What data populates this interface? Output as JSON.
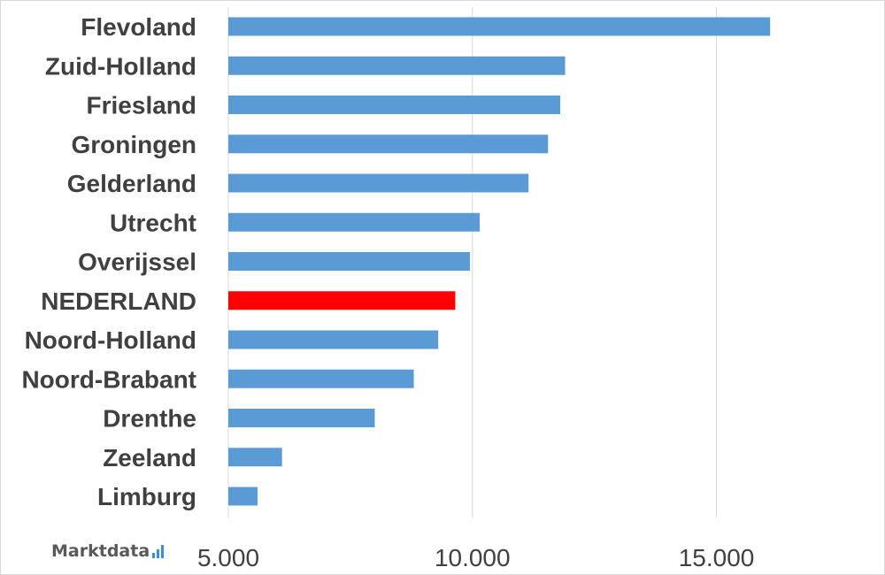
{
  "chart_data": {
    "type": "bar",
    "orientation": "horizontal",
    "categories": [
      "Flevoland",
      "Zuid-Holland",
      "Friesland",
      "Groningen",
      "Gelderland",
      "Utrecht",
      "Overijssel",
      "NEDERLAND",
      "Noord-Holland",
      "Noord-Brabant",
      "Drenthe",
      "Zeeland",
      "Limburg"
    ],
    "values": [
      16100,
      11900,
      11800,
      11550,
      11150,
      10150,
      9950,
      9650,
      9300,
      8800,
      8000,
      6100,
      5600
    ],
    "highlight_category": "NEDERLAND",
    "x_ticks": [
      "5.000",
      "10.000",
      "15.000"
    ],
    "xlim": [
      5000,
      18000
    ],
    "title": "",
    "xlabel": "",
    "ylabel": "",
    "grid": "vertical",
    "colors": {
      "bar": "#5b9bd5",
      "highlight": "#ff0000",
      "grid": "#d9d9d9",
      "text": "#404040"
    }
  },
  "brand": {
    "name": "Marktdata",
    "icon": "bar-chart-icon",
    "color": "#3a8fd6"
  }
}
